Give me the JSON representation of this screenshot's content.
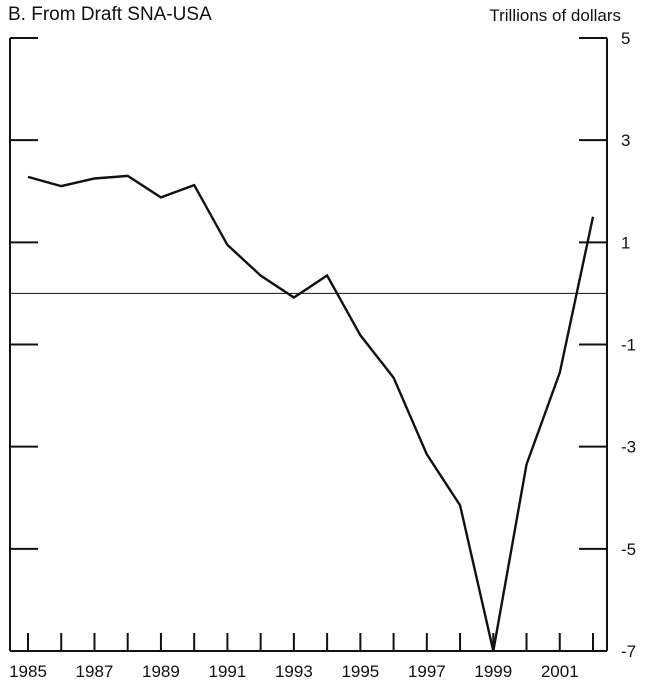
{
  "chart_data": {
    "type": "line",
    "title": "B. From Draft SNA-USA",
    "ylabel": "Trillions of dollars",
    "xlabel": "",
    "xlim": [
      1985,
      2002
    ],
    "ylim": [
      -7,
      5
    ],
    "x_ticks": [
      1985,
      1986,
      1987,
      1988,
      1989,
      1990,
      1991,
      1992,
      1993,
      1994,
      1995,
      1996,
      1997,
      1998,
      1999,
      2000,
      2001,
      2002
    ],
    "x_tick_labels": [
      "1985",
      "1987",
      "1989",
      "1991",
      "1993",
      "1995",
      "1997",
      "1999",
      "2001"
    ],
    "x_tick_label_values": [
      1985,
      1987,
      1989,
      1991,
      1993,
      1995,
      1997,
      1999,
      2001
    ],
    "y_ticks": [
      5,
      3,
      1,
      -1,
      -3,
      -5,
      -7
    ],
    "y_tick_labels": [
      "5",
      "3",
      "1",
      "-1",
      "-3",
      "-5",
      "-7"
    ],
    "zero_line": 0,
    "grid": false,
    "series": [
      {
        "x": [
          1985,
          1986,
          1987,
          1988,
          1989,
          1990,
          1991,
          1992,
          1993,
          1994,
          1995,
          1996,
          1997,
          1998,
          1999,
          2000,
          2001,
          2002
        ],
        "y": [
          2.28,
          2.1,
          2.25,
          2.3,
          1.88,
          2.12,
          0.95,
          0.35,
          -0.08,
          0.35,
          -0.82,
          -1.65,
          -3.15,
          -4.15,
          -7.0,
          -3.35,
          -1.55,
          1.5
        ]
      }
    ]
  }
}
